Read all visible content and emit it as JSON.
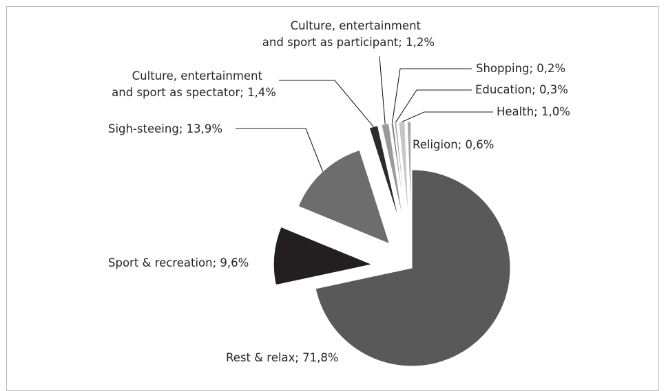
{
  "chart_data": {
    "type": "pie",
    "title": "",
    "slices": [
      {
        "label": "Rest & relax",
        "value": 71.8,
        "display": "Rest & relax; 71,8%",
        "color": "#595959"
      },
      {
        "label": "Sport & recreation",
        "value": 9.6,
        "display": "Sport & recreation; 9,6%",
        "color": "#231f20"
      },
      {
        "label": "Sigh-steeing",
        "value": 13.9,
        "display": "Sigh-steeing; 13,9%",
        "color": "#6d6d6d"
      },
      {
        "label": "Culture, entertainment and sport as spectator",
        "value": 1.4,
        "display_lines": [
          "Culture, entertainment",
          "and sport as spectator; 1,4%"
        ],
        "color": "#2b2b2b"
      },
      {
        "label": "Culture, entertainment and sport as participant",
        "value": 1.2,
        "display_lines": [
          "Culture, entertainment",
          "and sport as participant; 1,2%"
        ],
        "color": "#9a9a9a"
      },
      {
        "label": "Shopping",
        "value": 0.2,
        "display": "Shopping; 0,2%",
        "color": "#7a7a7a"
      },
      {
        "label": "Education",
        "value": 0.3,
        "display": "Education; 0,3%",
        "color": "#b3b3b3"
      },
      {
        "label": "Health",
        "value": 1.0,
        "display": "Health; 1,0%",
        "color": "#c6c6c6"
      },
      {
        "label": "Religion",
        "value": 0.6,
        "display": "Religion; 0,6%",
        "color": "#a6a6a6"
      }
    ],
    "start": "12 o'clock, clockwise",
    "exploded": true,
    "legend": "none"
  }
}
